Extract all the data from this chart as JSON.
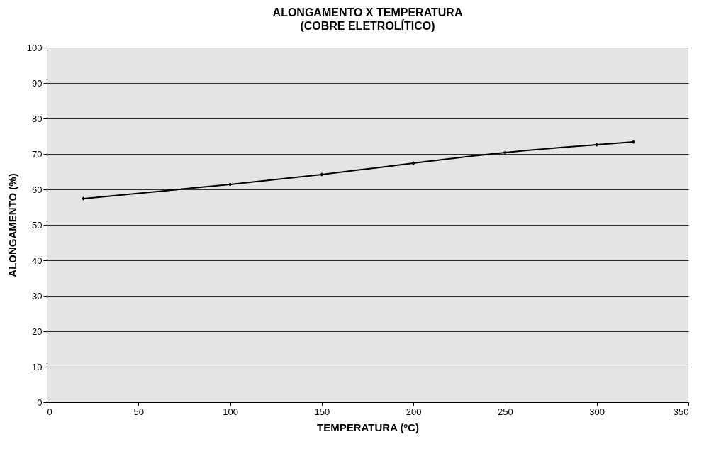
{
  "chart_data": {
    "type": "line",
    "title": "ALONGAMENTO X TEMPERATURA",
    "subtitle": "(COBRE ELETROLÍTICO)",
    "xlabel": "TEMPERATURA (ºC)",
    "ylabel": "ALONGAMENTO (%)",
    "x": [
      20,
      100,
      150,
      200,
      250,
      300,
      320
    ],
    "series": [
      {
        "color": "#000000",
        "values": [
          57.4,
          61.4,
          64.2,
          67.4,
          70.4,
          72.6,
          73.4
        ]
      }
    ],
    "xlim": [
      0,
      350
    ],
    "xticks": [
      0,
      50,
      100,
      150,
      200,
      250,
      300,
      350
    ],
    "ylim": [
      0,
      100
    ],
    "yticks": [
      0,
      10,
      20,
      30,
      40,
      50,
      60,
      70,
      80,
      90,
      100
    ],
    "grid": "y",
    "marker": "diamond",
    "line_style": "solid"
  }
}
